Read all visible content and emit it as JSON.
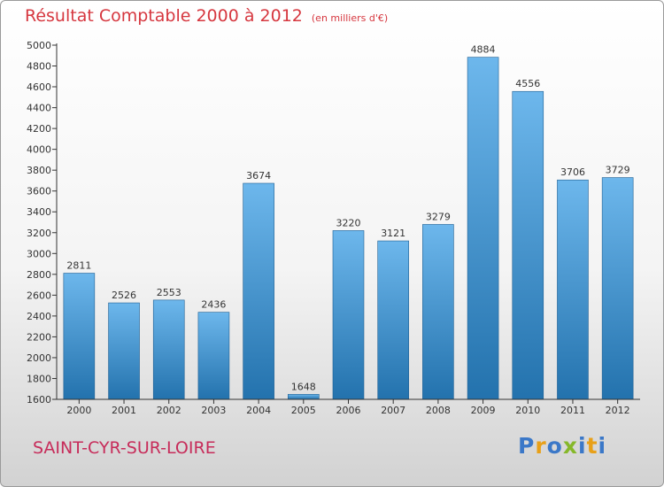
{
  "header": {
    "title": "Résultat Comptable 2000 à 2012",
    "subtitle": "(en milliers d'€)"
  },
  "footer": {
    "commune": "SAINT-CYR-SUR-LOIRE",
    "logo_letters": [
      "P",
      "r",
      "o",
      "x",
      "i",
      "t",
      "i"
    ],
    "logo_colors": [
      "#3b78c8",
      "#e8a018",
      "#3b78c8",
      "#86b82a",
      "#3b78c8",
      "#e8a018",
      "#3b78c8"
    ]
  },
  "colors": {
    "title": "#d6373f",
    "bar_light": "#6db7ec",
    "bar_dark": "#2372ad",
    "axis": "#333333"
  },
  "chart_data": {
    "type": "bar",
    "categories": [
      "2000",
      "2001",
      "2002",
      "2003",
      "2004",
      "2005",
      "2006",
      "2007",
      "2008",
      "2009",
      "2010",
      "2011",
      "2012"
    ],
    "values": [
      2811,
      2526,
      2553,
      2436,
      3674,
      1648,
      3220,
      3121,
      3279,
      4884,
      4556,
      3706,
      3729
    ],
    "ylim": [
      1600,
      5000
    ],
    "yticks": [
      1600,
      1800,
      2000,
      2200,
      2400,
      2600,
      2800,
      3000,
      3200,
      3400,
      3600,
      3800,
      4000,
      4200,
      4400,
      4600,
      4800,
      5000
    ],
    "grid": false,
    "data_labels": true
  }
}
